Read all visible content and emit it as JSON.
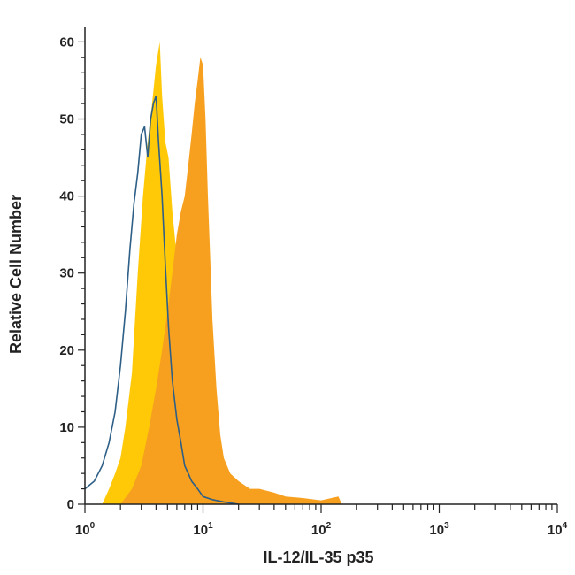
{
  "chart_data": {
    "type": "area",
    "xlabel": "IL-12/IL-35 p35",
    "ylabel": "Relative Cell Number",
    "x_scale": "log10",
    "xlim": [
      1,
      10000
    ],
    "ylim": [
      0,
      62
    ],
    "x_ticks": [
      {
        "base": "10",
        "exp": "0"
      },
      {
        "base": "10",
        "exp": "1"
      },
      {
        "base": "10",
        "exp": "2"
      },
      {
        "base": "10",
        "exp": "3"
      },
      {
        "base": "10",
        "exp": "4"
      }
    ],
    "y_ticks": [
      "0",
      "10",
      "20",
      "30",
      "40",
      "50",
      "60"
    ],
    "colors": {
      "yellow_fill": "#FFC908",
      "orange_fill": "#F7A01F",
      "blue_line": "#2E5F86",
      "axis": "#222222"
    },
    "series": [
      {
        "style": "filled-yellow",
        "x": [
          1.4,
          1.6,
          1.8,
          2.0,
          2.2,
          2.5,
          2.8,
          3.1,
          3.4,
          3.7,
          4.0,
          4.3,
          4.5,
          4.8,
          5.1,
          5.5,
          6.0,
          6.5,
          7.0,
          7.5,
          8.0,
          8.5,
          9.0,
          10.0,
          11.0,
          13.0
        ],
        "y": [
          0,
          2,
          4,
          6,
          10,
          17,
          30,
          40,
          47,
          52,
          57,
          60,
          53,
          47,
          45,
          38,
          32,
          26,
          18,
          11,
          6,
          4,
          2,
          1,
          0.5,
          0
        ]
      },
      {
        "style": "filled-orange",
        "x": [
          2.0,
          2.5,
          3.0,
          3.5,
          4.0,
          4.5,
          5.0,
          5.5,
          6.0,
          6.5,
          7.0,
          7.5,
          8.0,
          8.5,
          9.0,
          9.5,
          10.0,
          10.5,
          11.0,
          11.5,
          12.0,
          13.0,
          14.0,
          15.0,
          17.0,
          20.0,
          25.0,
          30.0,
          40.0,
          50.0,
          70.0,
          100.0,
          140.0,
          150.0
        ],
        "y": [
          0,
          2,
          5,
          10,
          15,
          20,
          25,
          30,
          35,
          38,
          40,
          44,
          48,
          52,
          55,
          58,
          57,
          50,
          40,
          32,
          24,
          15,
          9,
          6,
          4,
          3,
          2,
          2,
          1.5,
          1,
          0.8,
          0.5,
          1,
          0
        ]
      },
      {
        "style": "blue-outline",
        "x": [
          1.0,
          1.2,
          1.4,
          1.6,
          1.8,
          2.0,
          2.2,
          2.4,
          2.6,
          2.8,
          3.0,
          3.2,
          3.4,
          3.6,
          3.8,
          4.0,
          4.2,
          4.5,
          4.8,
          5.1,
          5.5,
          6.0,
          6.5,
          7.0,
          7.5,
          8.0,
          9.0,
          10.0,
          12.0,
          15.0,
          20.0
        ],
        "y": [
          2,
          3,
          5,
          8,
          12,
          18,
          25,
          33,
          39,
          43,
          48,
          49,
          45,
          50,
          52,
          53,
          47,
          40,
          31,
          23,
          16,
          11,
          8,
          5,
          4,
          3,
          2,
          1,
          0.6,
          0.3,
          0
        ]
      }
    ]
  }
}
